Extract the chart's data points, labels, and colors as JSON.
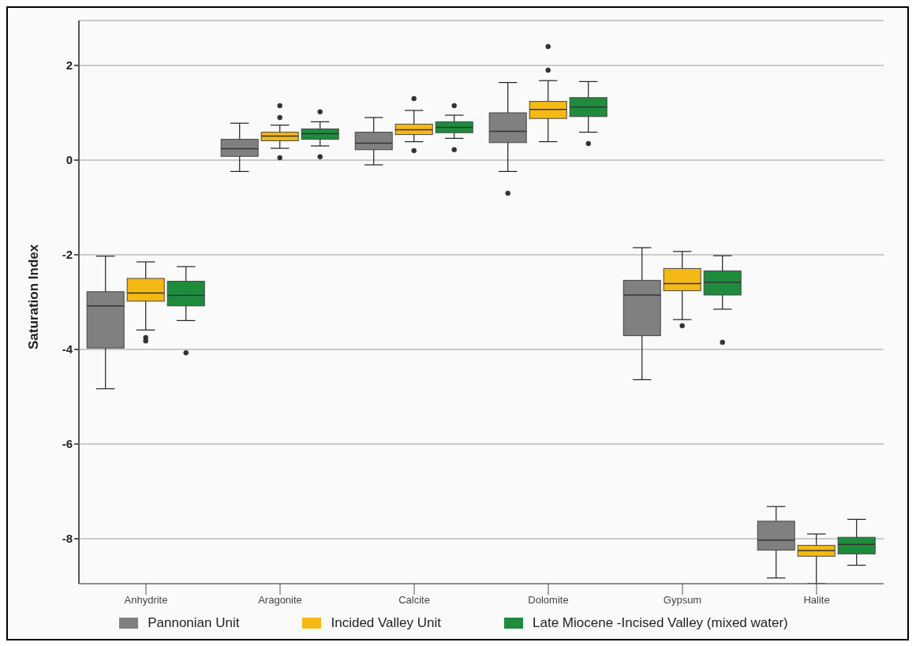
{
  "chart_data": {
    "type": "box",
    "ylabel": "Saturation Index",
    "categories": [
      "Anhydrite",
      "Aragonite",
      "Calcite",
      "Dolomite",
      "Gypsum",
      "Halite"
    ],
    "ylim": [
      -8.95,
      2.95
    ],
    "yticks": [
      2,
      0,
      -2,
      -4,
      -6,
      -8
    ],
    "grid": "y",
    "legend": "bottom",
    "series": [
      {
        "name": "Pannonian Unit",
        "color": "#808080",
        "boxes": [
          {
            "low": -4.83,
            "q1": -3.97,
            "median": -3.08,
            "q3": -2.78,
            "high": -2.03
          },
          {
            "low": -0.24,
            "q1": 0.08,
            "median": 0.24,
            "q3": 0.44,
            "high": 0.78
          },
          {
            "low": -0.1,
            "q1": 0.22,
            "median": 0.36,
            "q3": 0.59,
            "high": 0.9
          },
          {
            "low": -0.24,
            "q1": 0.37,
            "median": 0.61,
            "q3": 1.0,
            "high": 1.64,
            "outliers": [
              -0.7
            ]
          },
          {
            "low": -4.64,
            "q1": -3.71,
            "median": -2.85,
            "q3": -2.54,
            "high": -1.85
          },
          {
            "low": -8.83,
            "q1": -8.24,
            "median": -8.03,
            "q3": -7.63,
            "high": -7.32
          }
        ]
      },
      {
        "name": "Incided Valley Unit",
        "color": "#f5b915",
        "boxes": [
          {
            "low": -3.59,
            "q1": -2.98,
            "median": -2.81,
            "q3": -2.5,
            "high": -2.15,
            "outliers": [
              -3.75,
              -3.82
            ]
          },
          {
            "low": 0.25,
            "q1": 0.41,
            "median": 0.51,
            "q3": 0.59,
            "high": 0.74,
            "outliers": [
              1.15,
              0.9,
              0.05
            ]
          },
          {
            "low": 0.39,
            "q1": 0.54,
            "median": 0.64,
            "q3": 0.76,
            "high": 1.05,
            "outliers": [
              1.3,
              0.2
            ]
          },
          {
            "low": 0.39,
            "q1": 0.88,
            "median": 1.07,
            "q3": 1.24,
            "high": 1.68,
            "outliers": [
              2.4,
              1.9
            ]
          },
          {
            "low": -3.37,
            "q1": -2.76,
            "median": -2.61,
            "q3": -2.29,
            "high": -1.93,
            "outliers": [
              -3.5
            ]
          },
          {
            "low": -8.95,
            "q1": -8.37,
            "median": -8.25,
            "q3": -8.14,
            "high": -7.9
          }
        ]
      },
      {
        "name": "Late Miocene -Incised Valley (mixed water)",
        "color": "#1e8c3c",
        "boxes": [
          {
            "low": -3.39,
            "q1": -3.08,
            "median": -2.86,
            "q3": -2.56,
            "high": -2.25,
            "outliers": [
              -4.07
            ]
          },
          {
            "low": 0.3,
            "q1": 0.44,
            "median": 0.56,
            "q3": 0.66,
            "high": 0.81,
            "outliers": [
              1.02,
              0.07
            ]
          },
          {
            "low": 0.46,
            "q1": 0.58,
            "median": 0.69,
            "q3": 0.81,
            "high": 0.95,
            "outliers": [
              1.15,
              0.22
            ]
          },
          {
            "low": 0.59,
            "q1": 0.92,
            "median": 1.12,
            "q3": 1.32,
            "high": 1.66,
            "outliers": [
              0.35
            ]
          },
          {
            "low": -3.15,
            "q1": -2.85,
            "median": -2.58,
            "q3": -2.34,
            "high": -2.02,
            "outliers": [
              -3.85
            ]
          },
          {
            "low": -8.56,
            "q1": -8.32,
            "median": -8.12,
            "q3": -7.97,
            "high": -7.59
          }
        ]
      }
    ]
  }
}
